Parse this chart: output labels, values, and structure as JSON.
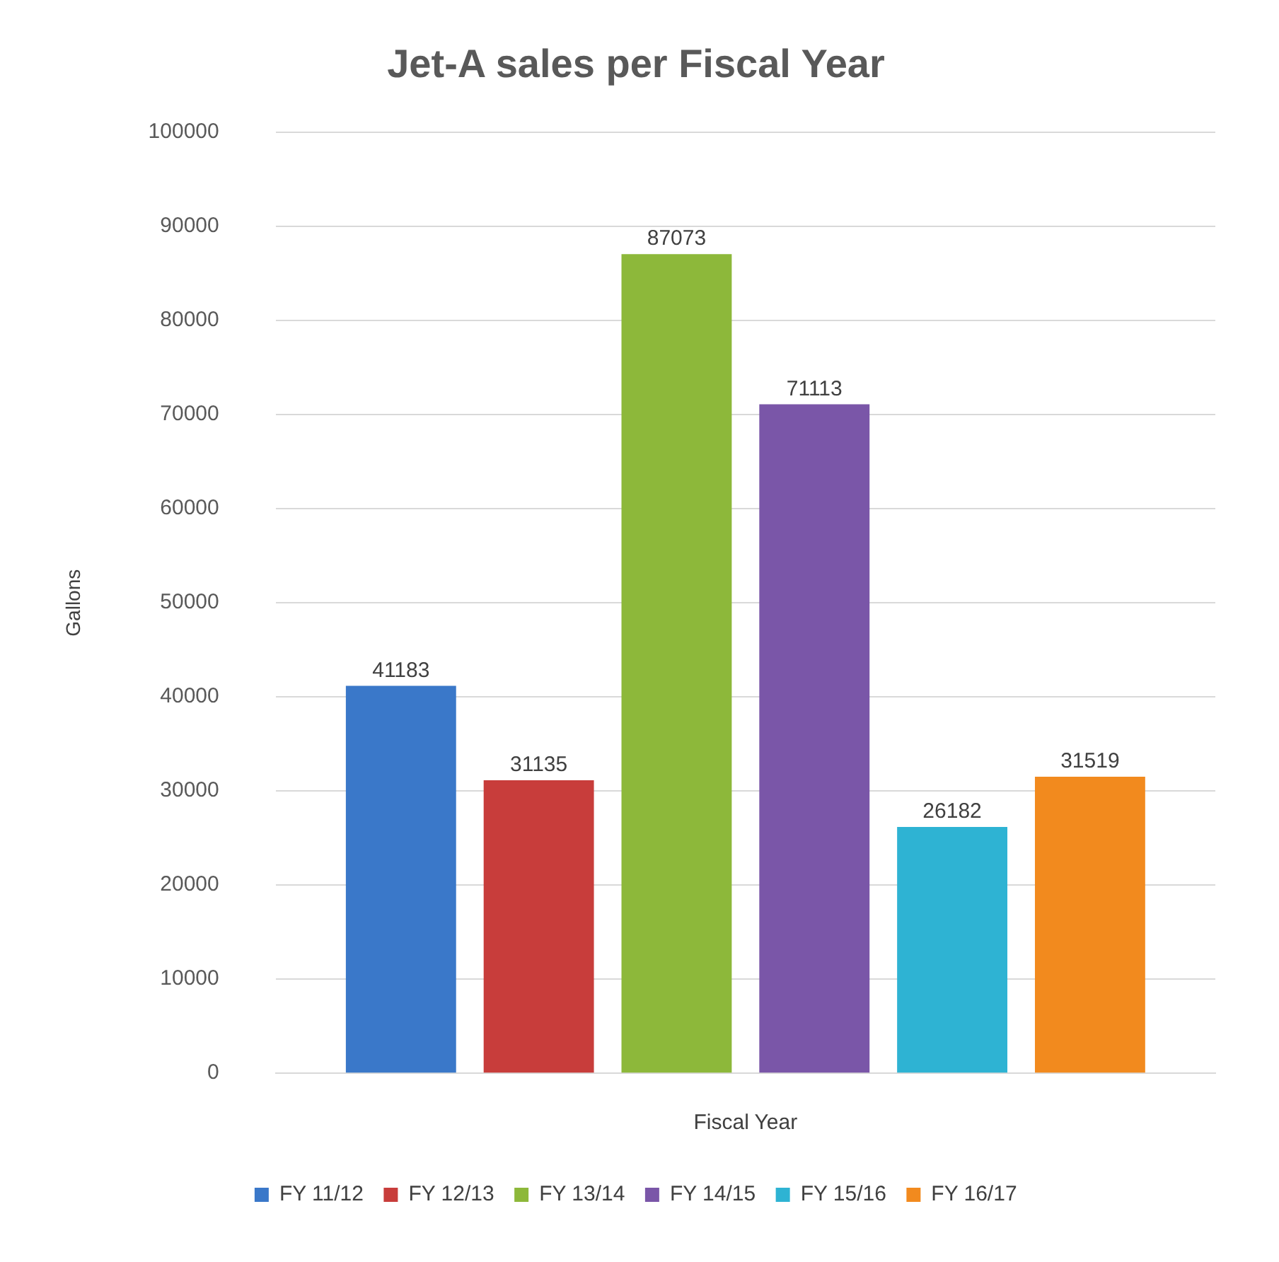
{
  "chart_data": {
    "type": "bar",
    "title": "Jet-A sales per Fiscal Year",
    "xlabel": "Fiscal Year",
    "ylabel": "Gallons",
    "categories": [
      null
    ],
    "series": [
      {
        "name": "FY 11/12",
        "color": "#3a78c9",
        "values": [
          41183
        ]
      },
      {
        "name": "FY 12/13",
        "color": "#c83d3b",
        "values": [
          31135
        ]
      },
      {
        "name": "FY 13/14",
        "color": "#8db83a",
        "values": [
          87073
        ]
      },
      {
        "name": "FY 14/15",
        "color": "#7a56a8",
        "values": [
          71113
        ]
      },
      {
        "name": "FY 15/16",
        "color": "#2eb3d3",
        "values": [
          26182
        ]
      },
      {
        "name": "FY 16/17",
        "color": "#f28a1e",
        "values": [
          31519
        ]
      }
    ],
    "ylim": [
      0,
      100000
    ],
    "yticks": [
      0,
      10000,
      20000,
      30000,
      40000,
      50000,
      60000,
      70000,
      80000,
      90000,
      100000
    ],
    "grid": "y",
    "legend": "bottom",
    "data_labels": true
  }
}
